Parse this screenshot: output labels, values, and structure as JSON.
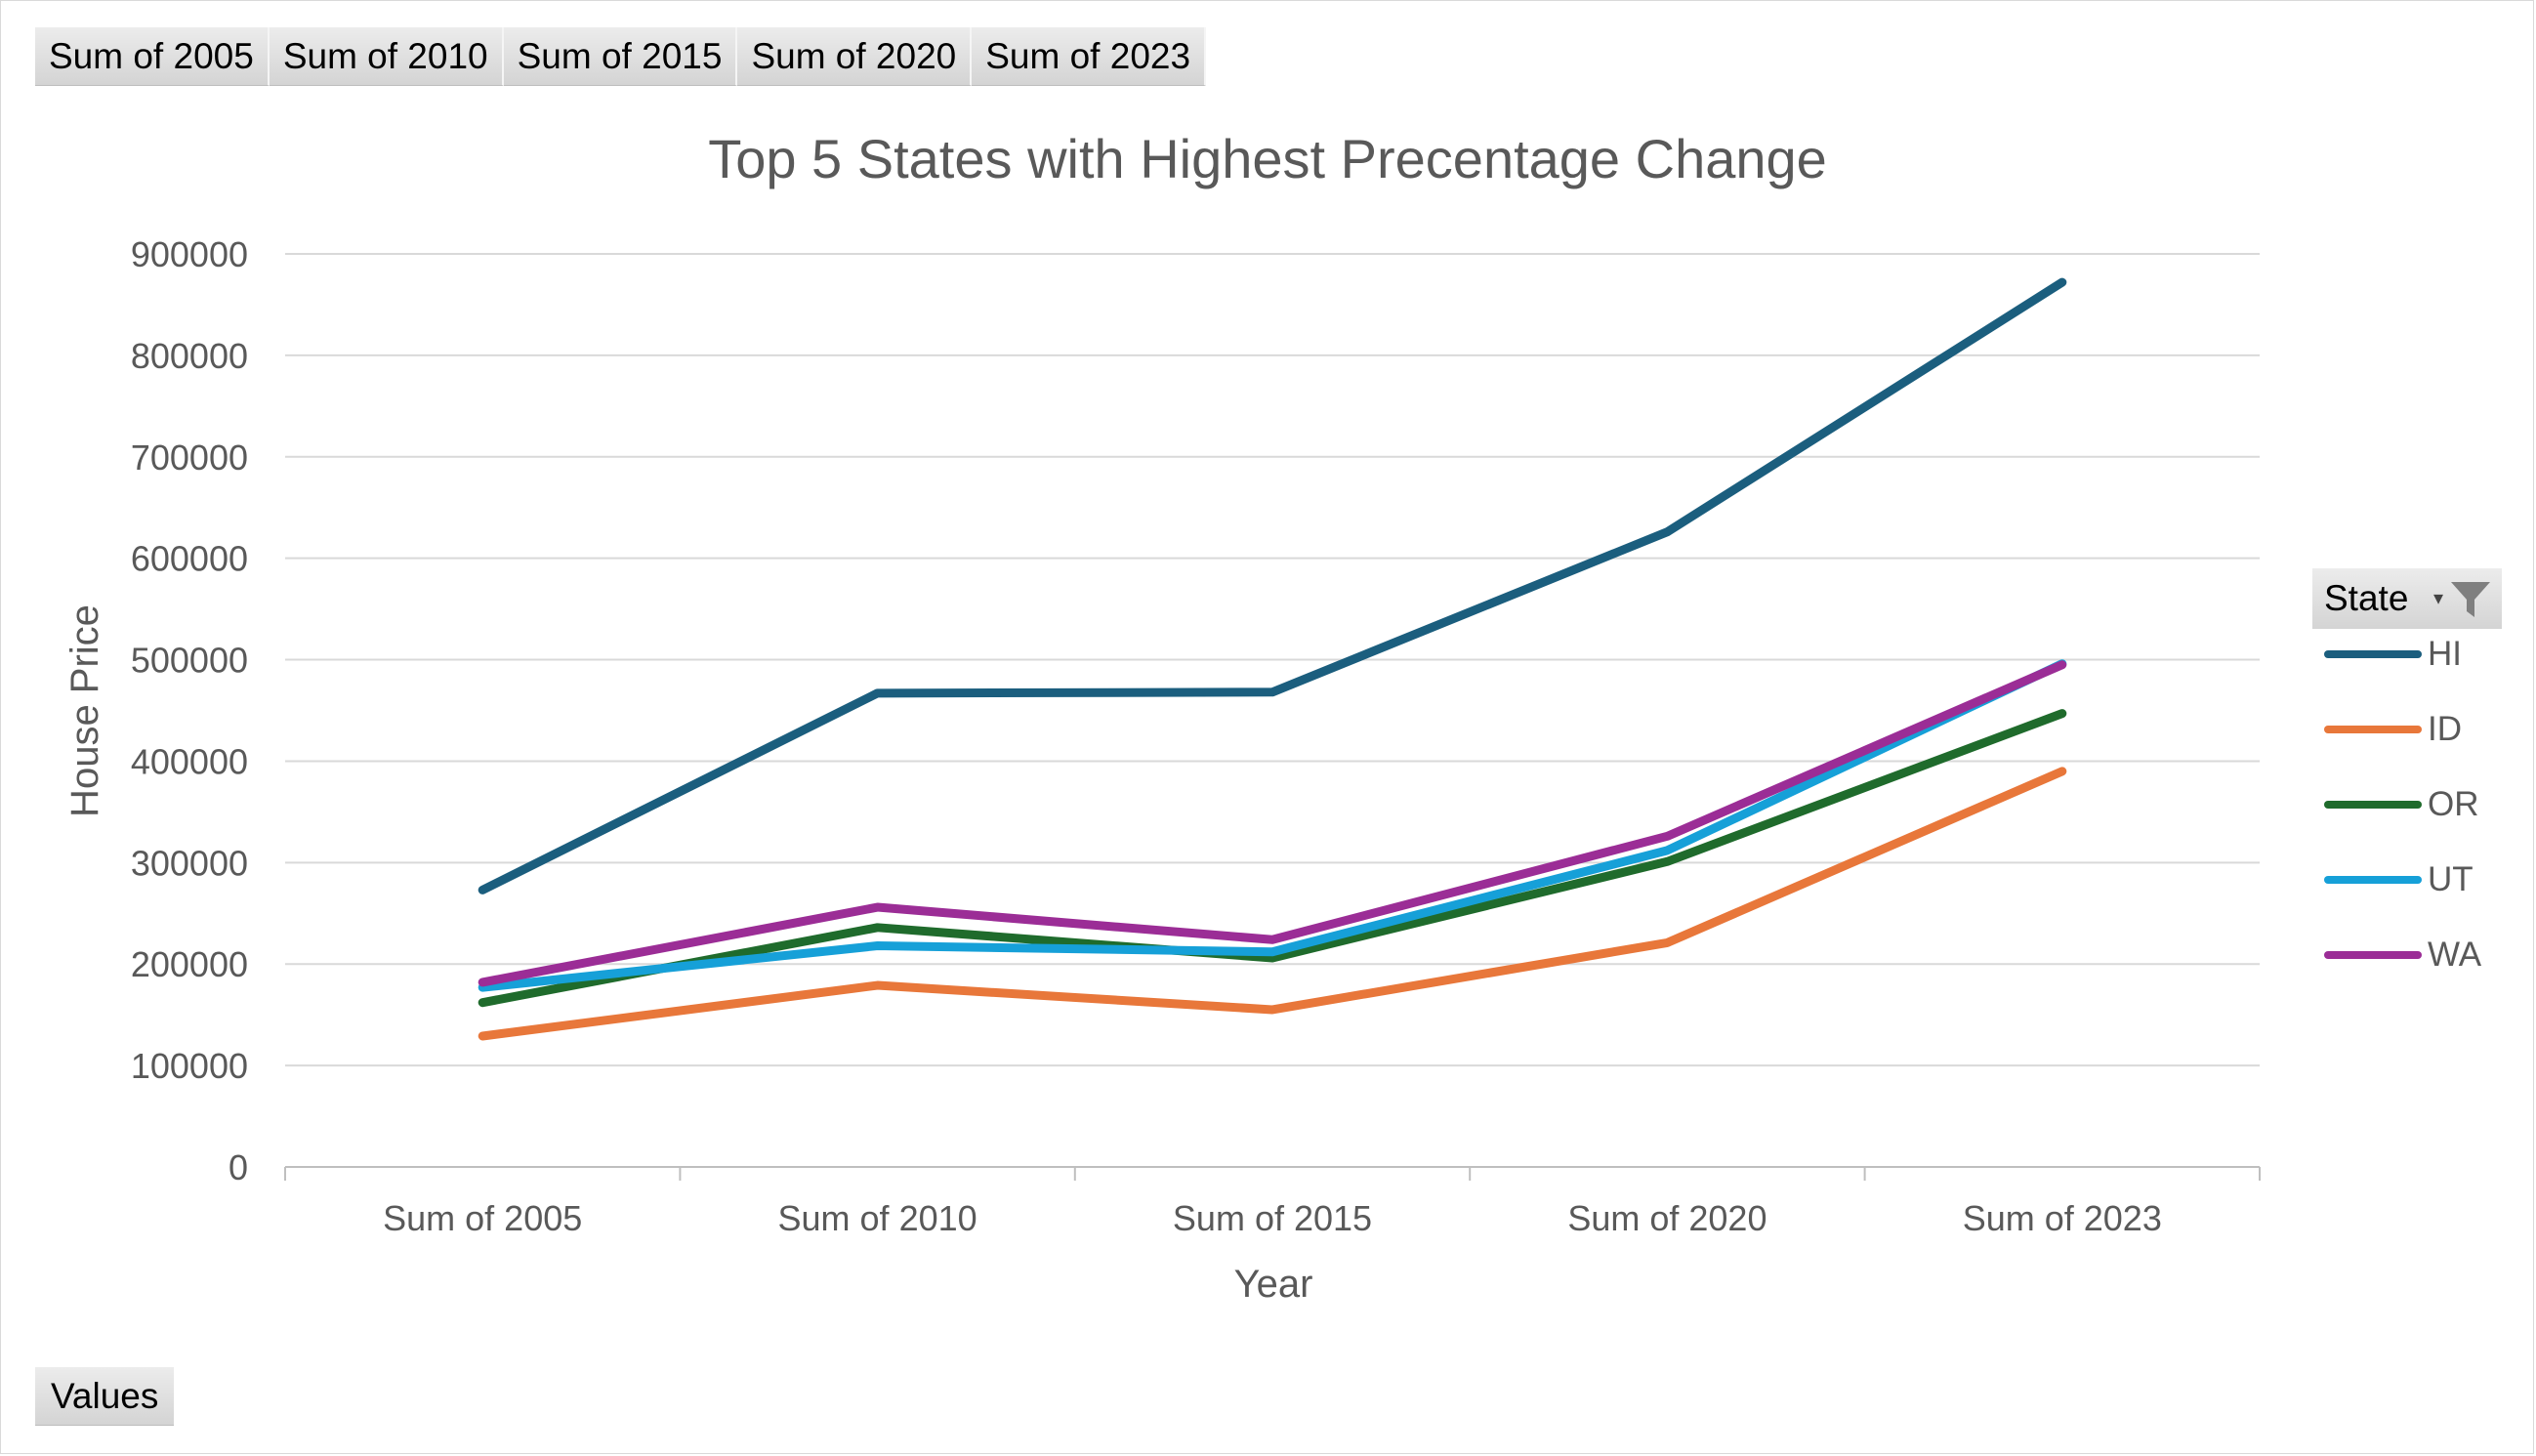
{
  "field_buttons": [
    "Sum of 2005",
    "Sum of 2010",
    "Sum of 2015",
    "Sum of 2020",
    "Sum of 2023"
  ],
  "values_button": "Values",
  "legend": {
    "title": "State",
    "filter_icon": "filter-icon",
    "dropdown_icon": "dropdown-arrow-icon"
  },
  "chart_data": {
    "type": "line",
    "title": "Top 5 States with Highest Precentage Change",
    "xlabel": "Year",
    "ylabel": "House Price",
    "categories": [
      "Sum of 2005",
      "Sum of 2010",
      "Sum of 2015",
      "Sum of 2020",
      "Sum of 2023"
    ],
    "ylim": [
      0,
      900000
    ],
    "yticks": [
      0,
      100000,
      200000,
      300000,
      400000,
      500000,
      600000,
      700000,
      800000,
      900000
    ],
    "grid": true,
    "legend_position": "right",
    "series": [
      {
        "name": "HI",
        "color": "#1b5e7e",
        "values": [
          273000,
          467000,
          468000,
          626000,
          872000
        ]
      },
      {
        "name": "ID",
        "color": "#e8773a",
        "values": [
          129000,
          179000,
          155000,
          221000,
          390000
        ]
      },
      {
        "name": "OR",
        "color": "#1f6b2c",
        "values": [
          162000,
          236000,
          206000,
          301000,
          447000
        ]
      },
      {
        "name": "UT",
        "color": "#16a0d8",
        "values": [
          177000,
          218000,
          212000,
          312000,
          496000
        ]
      },
      {
        "name": "WA",
        "color": "#9b2d96",
        "values": [
          182000,
          256000,
          224000,
          326000,
          495000
        ]
      }
    ]
  }
}
